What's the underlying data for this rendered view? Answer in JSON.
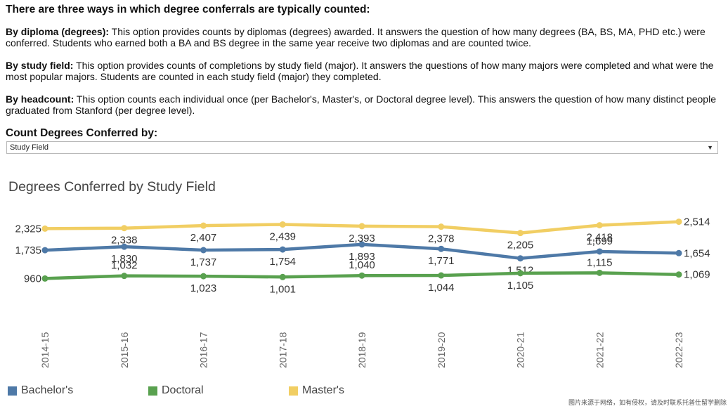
{
  "intro": {
    "heading": "There are three ways in which degree conferrals are typically counted:",
    "options": [
      {
        "name": "By diploma (degrees):",
        "text": " This option provides counts by diplomas (degrees) awarded.  It answers the question of how many degrees (BA, BS, MA, PHD etc.) were conferred. Students who earned both a BA and BS degree in the same year receive two diplomas and are counted twice."
      },
      {
        "name": "By study field:",
        "text": " This option provides counts of completions by study field (major).  It answers the questions of how many majors were completed and what were the most popular majors. Students are counted in each study field (major) they completed."
      },
      {
        "name": "By headcount:",
        "text": " This option counts each individual once (per Bachelor's, Master's, or Doctoral degree level).  This answers the question of how many distinct people graduated from Stanford (per degree level)."
      }
    ]
  },
  "filter": {
    "label": "Count Degrees Conferred by:",
    "selected": "Study Field"
  },
  "chart_data": {
    "type": "line",
    "title": "Degrees Conferred by Study Field",
    "categories": [
      "2014-15",
      "2015-16",
      "2016-17",
      "2017-18",
      "2018-19",
      "2019-20",
      "2020-21",
      "2021-22",
      "2022-23"
    ],
    "series": [
      {
        "name": "Bachelor's",
        "color": "#4e79a7",
        "values": [
          1735,
          1830,
          1737,
          1754,
          1893,
          1771,
          1512,
          1699,
          1654
        ]
      },
      {
        "name": "Doctoral",
        "color": "#59a14f",
        "values": [
          960,
          1032,
          1023,
          1001,
          1040,
          1044,
          1105,
          1115,
          1069
        ]
      },
      {
        "name": "Master's",
        "color": "#f1ce63",
        "values": [
          2325,
          2338,
          2407,
          2439,
          2393,
          2378,
          2205,
          2418,
          2514
        ]
      }
    ],
    "data_labels": {
      "Bachelor's": [
        "1,735",
        "1,830",
        "1,737",
        "1,754",
        "1,893",
        "1,771",
        "1,512",
        "1,699",
        "1,654"
      ],
      "Doctoral": [
        "960",
        "1,032",
        "1,023",
        "1,001",
        "1,040",
        "1,044",
        "1,105",
        "1,115",
        "1,069"
      ],
      "Master's": [
        "2,325",
        "2,338",
        "2,407",
        "2,439",
        "2,393",
        "2,378",
        "2,205",
        "2,418",
        "2,514"
      ]
    },
    "grid": false,
    "legend_position": "bottom-left"
  },
  "watermark": "图片来源于网络，如有侵权，请及时联系托普仕留学删除"
}
